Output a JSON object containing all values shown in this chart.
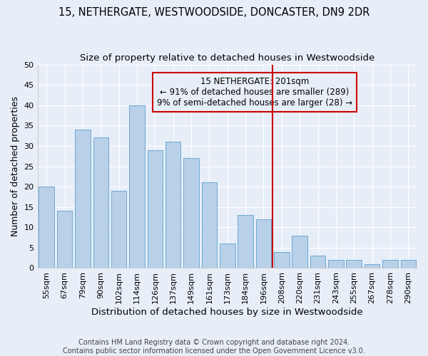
{
  "title1": "15, NETHERGATE, WESTWOODSIDE, DONCASTER, DN9 2DR",
  "title2": "Size of property relative to detached houses in Westwoodside",
  "xlabel": "Distribution of detached houses by size in Westwoodside",
  "ylabel": "Number of detached properties",
  "footer": "Contains HM Land Registry data © Crown copyright and database right 2024.\nContains public sector information licensed under the Open Government Licence v3.0.",
  "categories": [
    "55sqm",
    "67sqm",
    "79sqm",
    "90sqm",
    "102sqm",
    "114sqm",
    "126sqm",
    "137sqm",
    "149sqm",
    "161sqm",
    "173sqm",
    "184sqm",
    "196sqm",
    "208sqm",
    "220sqm",
    "231sqm",
    "243sqm",
    "255sqm",
    "267sqm",
    "278sqm",
    "290sqm"
  ],
  "values": [
    20,
    14,
    34,
    32,
    19,
    40,
    29,
    31,
    27,
    21,
    6,
    13,
    12,
    4,
    8,
    3,
    2,
    2,
    1,
    2,
    2
  ],
  "bar_color": "#b8d0e8",
  "bar_edge_color": "#6aaad4",
  "vline_index": 12,
  "vline_color": "#cc0000",
  "annotation_text": "15 NETHERGATE: 201sqm\n← 91% of detached houses are smaller (289)\n9% of semi-detached houses are larger (28) →",
  "annotation_box_color": "#cc0000",
  "ylim": [
    0,
    50
  ],
  "yticks": [
    0,
    5,
    10,
    15,
    20,
    25,
    30,
    35,
    40,
    45,
    50
  ],
  "background_color": "#e8eef8",
  "grid_color": "#ffffff",
  "title1_fontsize": 10.5,
  "title2_fontsize": 9.5,
  "xlabel_fontsize": 9.5,
  "ylabel_fontsize": 9,
  "tick_fontsize": 8,
  "annotation_fontsize": 8.5,
  "footer_fontsize": 7
}
